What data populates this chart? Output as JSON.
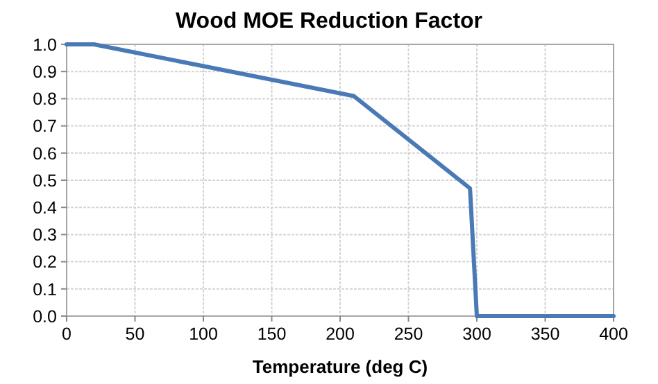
{
  "chart_data": {
    "type": "line",
    "title": "Wood MOE Reduction Factor",
    "xlabel": "Temperature (deg C)",
    "x": [
      0,
      20,
      210,
      295,
      300,
      400
    ],
    "series": [
      {
        "color": "#4a7ab5",
        "values": [
          1.0,
          1.0,
          0.81,
          0.47,
          0,
          0
        ]
      }
    ],
    "xlim": [
      0,
      400
    ],
    "xticks": [
      0,
      50,
      100,
      150,
      200,
      250,
      300,
      350,
      400
    ],
    "ylim": [
      0,
      1
    ],
    "yticks": [
      {
        "value": 0,
        "label": "0.0"
      },
      {
        "value": 0.1,
        "label": "0.1"
      },
      {
        "value": 0.2,
        "label": "0.2"
      },
      {
        "value": 0.3,
        "label": "0.3"
      },
      {
        "value": 0.4,
        "label": "0.4"
      },
      {
        "value": 0.5,
        "label": "0.5"
      },
      {
        "value": 0.6,
        "label": "0.6"
      },
      {
        "value": 0.7,
        "label": "0.7"
      },
      {
        "value": 0.8,
        "label": "0.8"
      },
      {
        "value": 0.9,
        "label": "0.9"
      },
      {
        "value": 1,
        "label": "1.0"
      }
    ],
    "grid": true,
    "marker": "none",
    "line_style": "solid"
  }
}
